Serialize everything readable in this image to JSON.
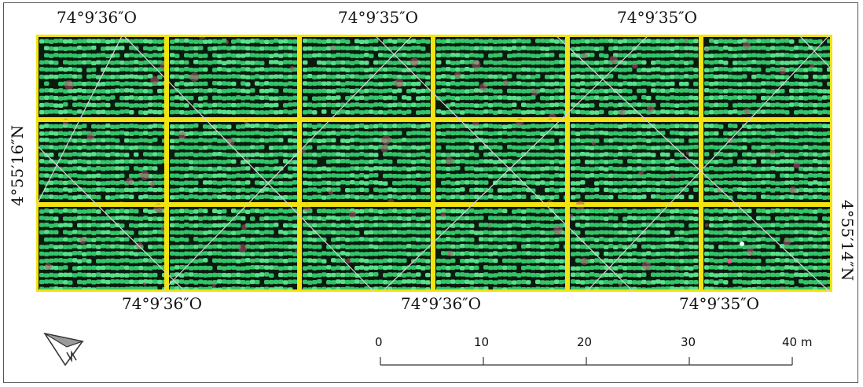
{
  "map": {
    "colors": {
      "canopy": "#33c46a",
      "canopy_light": "#58e08a",
      "soil": "#0b1a0e",
      "soil_pink": "#b0566e",
      "plot_border": "#f2e311",
      "grid_line": "#d6d6d6"
    },
    "plots": {
      "rows": 3,
      "columns": 6
    },
    "graticule": {
      "top_labels": [
        "74°9′36″O",
        "74°9′35″O",
        "74°9′35″O"
      ],
      "bottom_labels": [
        "74°9′36″O",
        "74°9′36″O",
        "74°9′35″O"
      ],
      "left_label": "4°55′16″N",
      "right_label": "4°55′14″N"
    }
  },
  "scale_bar": {
    "ticks": [
      "0",
      "10",
      "20",
      "30",
      "40"
    ],
    "unit": "m"
  },
  "north_arrow": {
    "icon": "north-arrow-icon"
  }
}
